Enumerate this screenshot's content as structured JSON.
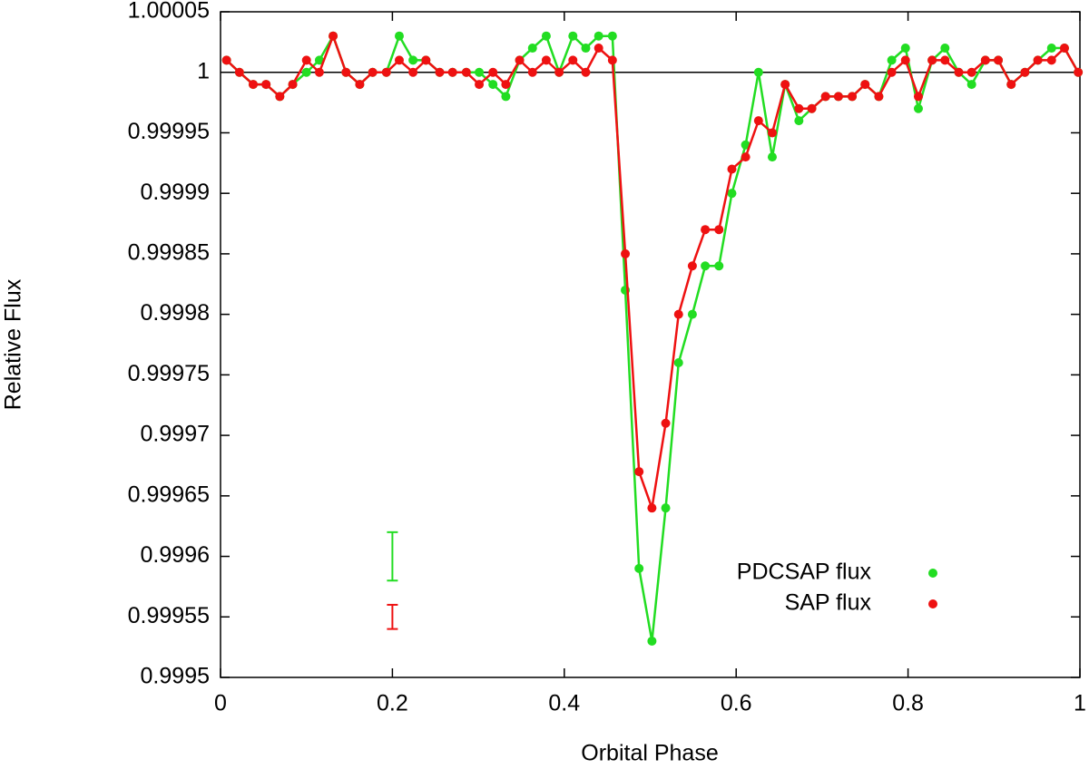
{
  "chart_data": {
    "type": "line",
    "xlabel": "Orbital Phase",
    "ylabel": "Relative Flux",
    "x": [
      0.007,
      0.022,
      0.038,
      0.053,
      0.069,
      0.084,
      0.1,
      0.115,
      0.131,
      0.146,
      0.162,
      0.177,
      0.193,
      0.208,
      0.224,
      0.239,
      0.255,
      0.27,
      0.286,
      0.301,
      0.317,
      0.332,
      0.348,
      0.363,
      0.379,
      0.394,
      0.41,
      0.425,
      0.44,
      0.456,
      0.471,
      0.487,
      0.502,
      0.518,
      0.533,
      0.549,
      0.564,
      0.58,
      0.595,
      0.611,
      0.626,
      0.642,
      0.657,
      0.673,
      0.688,
      0.704,
      0.719,
      0.735,
      0.75,
      0.766,
      0.781,
      0.797,
      0.812,
      0.828,
      0.843,
      0.859,
      0.874,
      0.89,
      0.905,
      0.92,
      0.936,
      0.951,
      0.967,
      0.982,
      0.998
    ],
    "series": [
      {
        "name": "PDCSAP flux",
        "color": "#22dd22",
        "values": [
          1.00001,
          1,
          0.99999,
          0.99999,
          0.99998,
          0.99999,
          1,
          1.00001,
          1.00003,
          1,
          0.99999,
          1,
          1,
          1.00003,
          1.00001,
          1.00001,
          1,
          1,
          1,
          1,
          0.99999,
          0.99998,
          1.00001,
          1.00002,
          1.00003,
          1,
          1.00003,
          1.00002,
          1.00003,
          1.00003,
          0.99982,
          0.99959,
          0.99953,
          0.99964,
          0.99976,
          0.9998,
          0.99984,
          0.99984,
          0.9999,
          0.99994,
          1,
          0.99993,
          0.99999,
          0.99996,
          0.99997,
          0.99998,
          0.99998,
          0.99998,
          0.99999,
          0.99998,
          1.00001,
          1.00002,
          0.99997,
          1.00001,
          1.00002,
          1,
          0.99999,
          1.00001,
          1.00001,
          0.99999,
          1,
          1.00001,
          1.00002,
          1.00002,
          1
        ]
      },
      {
        "name": "SAP flux",
        "color": "#ee1111",
        "values": [
          1.00001,
          1,
          0.99999,
          0.99999,
          0.99998,
          0.99999,
          1.00001,
          1,
          1.00003,
          1,
          0.99999,
          1,
          1,
          1.00001,
          1,
          1.00001,
          1,
          1,
          1,
          0.99999,
          1,
          0.99999,
          1.00001,
          1,
          1.00001,
          1,
          1.00001,
          1,
          1.00002,
          1.00001,
          0.99985,
          0.99967,
          0.99964,
          0.99971,
          0.9998,
          0.99984,
          0.99987,
          0.99987,
          0.99992,
          0.99993,
          0.99996,
          0.99995,
          0.99999,
          0.99997,
          0.99997,
          0.99998,
          0.99998,
          0.99998,
          0.99999,
          0.99998,
          1,
          1.00001,
          0.99998,
          1.00001,
          1.00001,
          1,
          1,
          1.00001,
          1.00001,
          0.99999,
          1,
          1.00001,
          1.00001,
          1.00002,
          1
        ]
      }
    ],
    "error_bars": [
      {
        "x": 0.2,
        "value": 0.9996,
        "error": 2e-05,
        "color": "#22dd22"
      },
      {
        "x": 0.2,
        "value": 0.99955,
        "error": 1e-05,
        "color": "#ee1111"
      }
    ],
    "reference_line": 1,
    "xlim": [
      0,
      1
    ],
    "xticks": [
      0,
      0.2,
      0.4,
      0.6,
      0.8,
      1
    ],
    "ylim": [
      0.9995,
      1.00005
    ],
    "yticks": [
      0.9995,
      0.99955,
      0.9996,
      0.99965,
      0.9997,
      0.99975,
      0.9998,
      0.99985,
      0.9999,
      0.99995,
      1,
      1.00005
    ],
    "grid": false,
    "legend": "lower right"
  }
}
